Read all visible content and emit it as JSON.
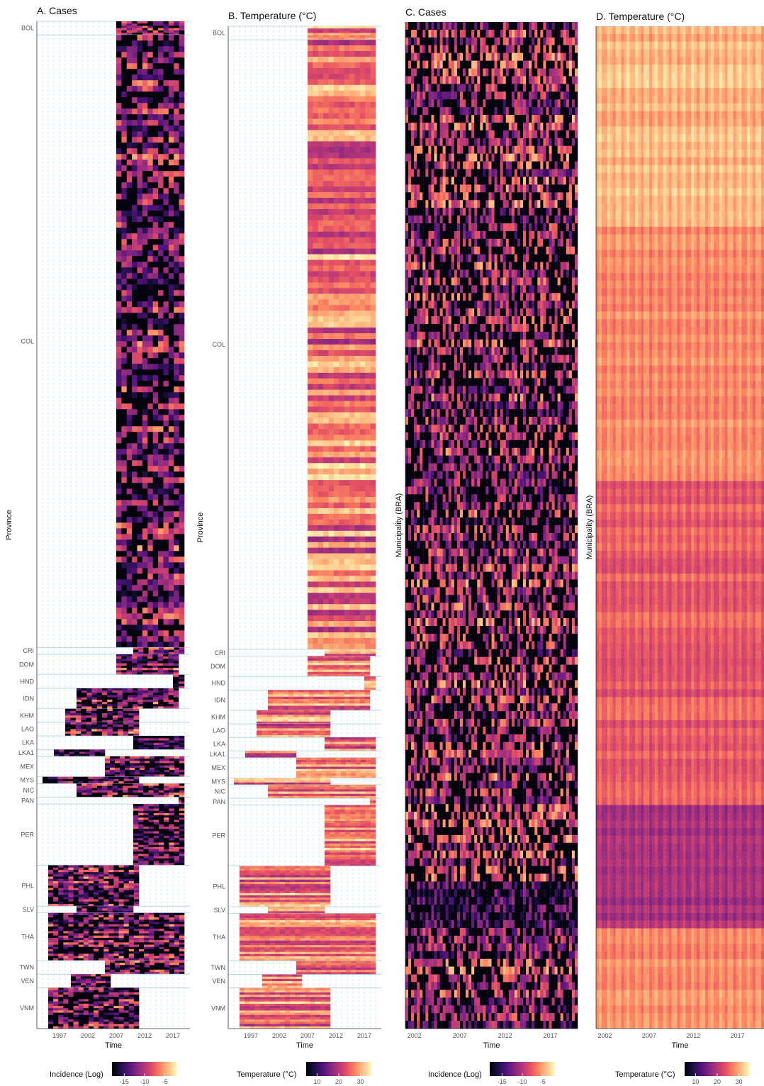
{
  "chart_data": [
    {
      "type": "heatmap",
      "title": "A. Cases",
      "xlabel": "Time",
      "ylabel": "Province",
      "x_ticks": [
        "1997",
        "2002",
        "2007",
        "2012",
        "2017"
      ],
      "legend_title": "Incidence (Log)",
      "legend_ticks": [
        "-15",
        "-10",
        "-5"
      ],
      "legend_range": [
        -18,
        -2
      ],
      "palette": "magma",
      "legend_position": "bottom",
      "groups": [
        {
          "label": "BOL",
          "rows": 2,
          "start": 2007,
          "end": 2019
        },
        {
          "label": "COL",
          "rows": 90,
          "start": 2007,
          "end": 2019
        },
        {
          "label": "CRI",
          "rows": 1,
          "start": 2010,
          "end": 2019
        },
        {
          "label": "DOM",
          "rows": 3,
          "start": 2007,
          "end": 2018
        },
        {
          "label": "HND",
          "rows": 2,
          "start": 2017,
          "end": 2019
        },
        {
          "label": "IDN",
          "rows": 3,
          "start": 2000,
          "end": 2018
        },
        {
          "label": "KHM",
          "rows": 2,
          "start": 1998,
          "end": 2011
        },
        {
          "label": "LAO",
          "rows": 2,
          "start": 1998,
          "end": 2011
        },
        {
          "label": "LKA",
          "rows": 2,
          "start": 2010,
          "end": 2019
        },
        {
          "label": "LKA1",
          "rows": 1,
          "start": 1996,
          "end": 2005
        },
        {
          "label": "MEX",
          "rows": 3,
          "start": 2005,
          "end": 2019
        },
        {
          "label": "MYS",
          "rows": 1,
          "start": 1994,
          "end": 2011
        },
        {
          "label": "NIC",
          "rows": 2,
          "start": 2000,
          "end": 2019
        },
        {
          "label": "PAN",
          "rows": 1,
          "start": 2018,
          "end": 2019
        },
        {
          "label": "PER",
          "rows": 9,
          "start": 2010,
          "end": 2019
        },
        {
          "label": "PHL",
          "rows": 6,
          "start": 1995,
          "end": 2011
        },
        {
          "label": "SLV",
          "rows": 1,
          "start": 2000,
          "end": 2010
        },
        {
          "label": "THA",
          "rows": 7,
          "start": 1995,
          "end": 2019
        },
        {
          "label": "TWN",
          "rows": 2,
          "start": 2005,
          "end": 2019
        },
        {
          "label": "VEN",
          "rows": 2,
          "start": 1999,
          "end": 2006
        },
        {
          "label": "VNM",
          "rows": 6,
          "start": 1995,
          "end": 2011
        }
      ]
    },
    {
      "type": "heatmap",
      "title": "B. Temperature (°C)",
      "xlabel": "Time",
      "ylabel": "Province",
      "x_ticks": [
        "1997",
        "2002",
        "2007",
        "2012",
        "2017"
      ],
      "legend_title": "Temperature (°C)",
      "legend_ticks": [
        "10",
        "20",
        "30"
      ],
      "legend_range": [
        5,
        35
      ],
      "palette": "magma",
      "legend_position": "bottom"
    },
    {
      "type": "heatmap",
      "title": "C. Cases",
      "xlabel": "Time",
      "ylabel": "Municipality (BRA)",
      "x_ticks": [
        "2002",
        "2007",
        "2012",
        "2017"
      ],
      "x_range": [
        2001,
        2020
      ],
      "legend_title": "Incidence (Log)",
      "legend_ticks": [
        "-15",
        "-10",
        "-5"
      ],
      "legend_range": [
        -18,
        -2
      ],
      "palette": "magma",
      "legend_position": "bottom"
    },
    {
      "type": "heatmap",
      "title": "D. Temperature (°C)",
      "xlabel": "Time",
      "ylabel": "Municipality (BRA)",
      "x_ticks": [
        "2002",
        "2007",
        "2012",
        "2017"
      ],
      "x_range": [
        2001,
        2020
      ],
      "legend_title": "Temperature (°C)",
      "legend_ticks": [
        "10",
        "20",
        "30"
      ],
      "legend_range": [
        5,
        35
      ],
      "palette": "magma",
      "legend_position": "bottom"
    }
  ],
  "colors": {
    "magma": [
      "#000004",
      "#1c1044",
      "#4f127b",
      "#812581",
      "#b5367a",
      "#e55064",
      "#fb8761",
      "#fec287",
      "#fcfdbf"
    ],
    "gridline": "#a6d3e3"
  }
}
